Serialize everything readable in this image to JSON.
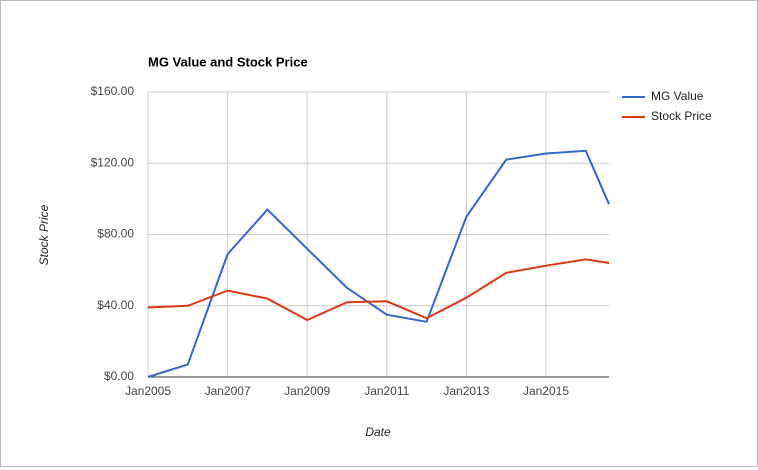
{
  "chart_data": {
    "type": "line",
    "title": "MG Value and Stock Price",
    "x_label": "Date",
    "y_label": "Stock Price",
    "x": [
      "2005-01",
      "2006-01",
      "2007-01",
      "2008-01",
      "2009-01",
      "2010-01",
      "2011-01",
      "2012-01",
      "2013-01",
      "2014-01",
      "2015-01",
      "2016-01",
      "2016-08"
    ],
    "series": [
      {
        "name": "MG Value",
        "color": "#3366cc",
        "values": [
          0,
          7,
          69,
          94,
          72,
          50,
          35,
          31,
          90,
          122,
          125.5,
          127,
          97
        ]
      },
      {
        "name": "Stock Price",
        "color": "#dc3912",
        "values": [
          39,
          40,
          48.5,
          44,
          32,
          42,
          42.5,
          33,
          44.5,
          58.5,
          62.5,
          66,
          64
        ]
      }
    ],
    "xlim": [
      "2005-01",
      "2016-08"
    ],
    "xticks": [
      {
        "value": "2005-01",
        "label": "Jan2005"
      },
      {
        "value": "2007-01",
        "label": "Jan2007"
      },
      {
        "value": "2009-01",
        "label": "Jan2009"
      },
      {
        "value": "2011-01",
        "label": "Jan2011"
      },
      {
        "value": "2013-01",
        "label": "Jan2013"
      },
      {
        "value": "2015-01",
        "label": "Jan2015"
      }
    ],
    "ylim": [
      0,
      160
    ],
    "yticks": [
      {
        "value": 0,
        "label": "$0.00"
      },
      {
        "value": 40,
        "label": "$40.00"
      },
      {
        "value": 80,
        "label": "$80.00"
      },
      {
        "value": 120,
        "label": "$120.00"
      },
      {
        "value": 160,
        "label": "$160.00"
      }
    ],
    "grid": true,
    "legend": "right"
  }
}
